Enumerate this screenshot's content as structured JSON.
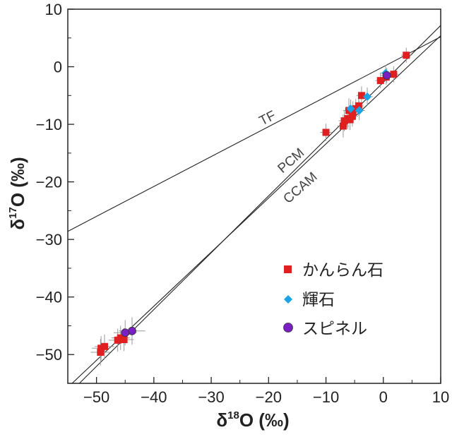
{
  "chart_data": {
    "type": "scatter",
    "xlabel": "δ18O (‰)",
    "ylabel": "δ17O (‰)",
    "xlabel_parts": {
      "main": "δ",
      "sup": "18",
      "rest": "O (‰)"
    },
    "ylabel_parts": {
      "main": "δ",
      "sup": "17",
      "rest": "O (‰)"
    },
    "xlim": [
      -55,
      10
    ],
    "ylim": [
      -55,
      10
    ],
    "x_ticks": [
      -50,
      -40,
      -30,
      -20,
      -10,
      0,
      10
    ],
    "y_ticks": [
      -50,
      -40,
      -30,
      -20,
      -10,
      0,
      10
    ],
    "x_tick_labels": [
      "−50",
      "−40",
      "−30",
      "−20",
      "−10",
      "0",
      "10"
    ],
    "y_tick_labels": [
      "−50",
      "−40",
      "−30",
      "−20",
      "−10",
      "0",
      "10"
    ],
    "grid": false,
    "legend_position": "bottom-right",
    "reference_lines": [
      {
        "name": "TF",
        "label": "TF",
        "slope": 0.52,
        "intercept": 0.0
      },
      {
        "name": "PCM",
        "label": "PCM",
        "slope": 0.987,
        "intercept": -2.7
      },
      {
        "name": "CCAM",
        "label": "CCAM",
        "slope": 0.94,
        "intercept": -4.0
      }
    ],
    "series": [
      {
        "name": "かんらん石",
        "marker": "square",
        "color": "#e02020",
        "points": [
          {
            "x": 4.0,
            "y": 2.0,
            "xerr": 0.9,
            "yerr": 1.3
          },
          {
            "x": 1.8,
            "y": -1.3,
            "xerr": 0.9,
            "yerr": 1.4
          },
          {
            "x": 0.5,
            "y": -1.8,
            "xerr": 0.8,
            "yerr": 1.3
          },
          {
            "x": -0.5,
            "y": -2.4,
            "xerr": 0.9,
            "yerr": 1.3
          },
          {
            "x": -3.8,
            "y": -5.0,
            "xerr": 0.9,
            "yerr": 1.6
          },
          {
            "x": -4.3,
            "y": -6.8,
            "xerr": 0.9,
            "yerr": 1.7
          },
          {
            "x": -4.8,
            "y": -7.3,
            "xerr": 0.9,
            "yerr": 1.7
          },
          {
            "x": -5.3,
            "y": -7.8,
            "xerr": 0.9,
            "yerr": 1.8
          },
          {
            "x": -6.0,
            "y": -7.6,
            "xerr": 1.0,
            "yerr": 2.1
          },
          {
            "x": -5.4,
            "y": -8.6,
            "xerr": 1.0,
            "yerr": 1.8
          },
          {
            "x": -6.2,
            "y": -9.0,
            "xerr": 1.0,
            "yerr": 1.8
          },
          {
            "x": -5.8,
            "y": -9.2,
            "xerr": 0.9,
            "yerr": 1.8
          },
          {
            "x": -6.8,
            "y": -9.4,
            "xerr": 1.0,
            "yerr": 1.8
          },
          {
            "x": -7.0,
            "y": -10.3,
            "xerr": 1.0,
            "yerr": 2.0
          },
          {
            "x": -10.0,
            "y": -11.4,
            "xerr": 1.0,
            "yerr": 1.5
          },
          {
            "x": -45.2,
            "y": -47.4,
            "xerr": 1.7,
            "yerr": 2.0
          },
          {
            "x": -45.8,
            "y": -47.1,
            "xerr": 1.6,
            "yerr": 2.1
          },
          {
            "x": -46.3,
            "y": -47.5,
            "xerr": 1.6,
            "yerr": 2.0
          },
          {
            "x": -48.6,
            "y": -48.6,
            "xerr": 1.7,
            "yerr": 2.1
          },
          {
            "x": -49.3,
            "y": -49.6,
            "xerr": 1.7,
            "yerr": 2.3
          },
          {
            "x": -49.2,
            "y": -48.9,
            "xerr": 1.6,
            "yerr": 2.1
          }
        ]
      },
      {
        "name": "輝石",
        "marker": "diamond",
        "color": "#1aa3e8",
        "points": [
          {
            "x": -2.8,
            "y": -5.2,
            "xerr": 1.0,
            "yerr": 1.6
          },
          {
            "x": -5.7,
            "y": -7.3,
            "xerr": 1.0,
            "yerr": 1.6
          },
          {
            "x": -4.2,
            "y": -7.6,
            "xerr": 1.0,
            "yerr": 1.7
          },
          {
            "x": 0.4,
            "y": -1.1,
            "xerr": 1.0,
            "yerr": 1.4
          }
        ]
      },
      {
        "name": "スピネル",
        "marker": "circle",
        "color": "#7b1fc4",
        "points": [
          {
            "x": 0.6,
            "y": -1.5,
            "xerr": 1.1,
            "yerr": 1.3
          },
          {
            "x": -43.8,
            "y": -45.9,
            "xerr": 2.3,
            "yerr": 2.4
          },
          {
            "x": -45.0,
            "y": -46.2,
            "xerr": 2.0,
            "yerr": 2.2
          }
        ]
      }
    ]
  }
}
